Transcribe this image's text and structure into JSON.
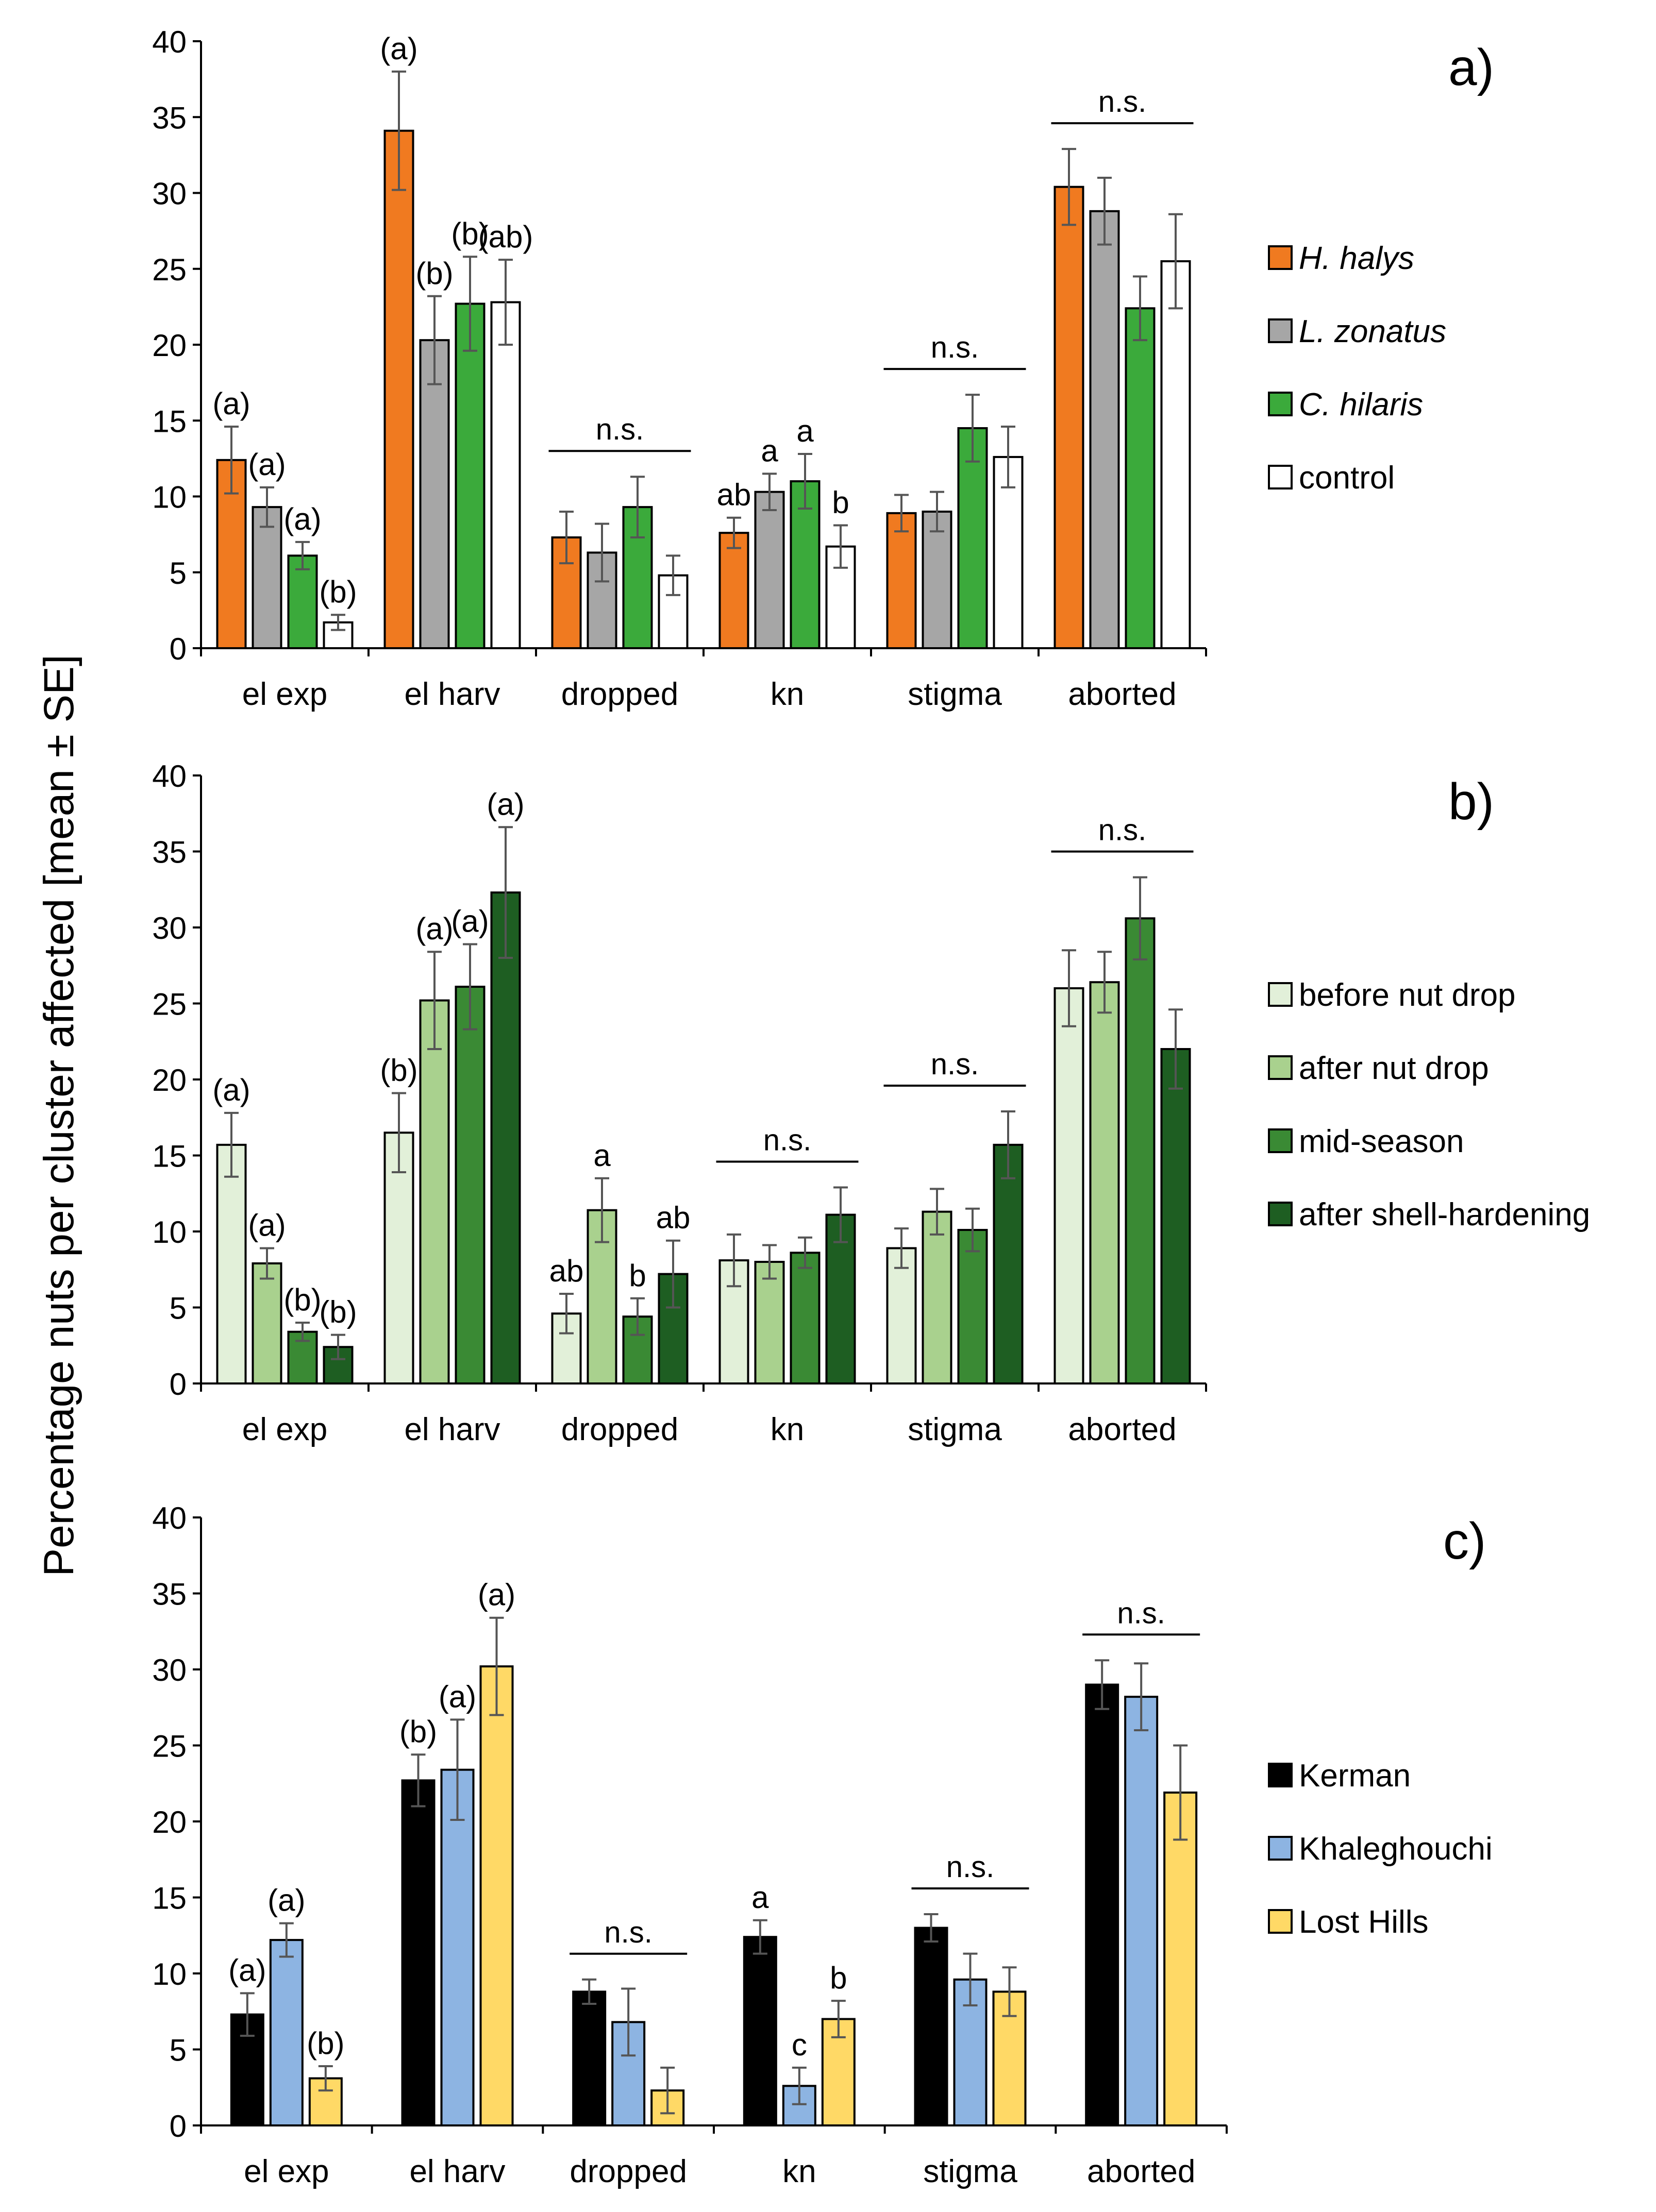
{
  "ylabel": "Percentage nuts per cluster affected [mean ± SE]",
  "chart_data": [
    {
      "type": "bar",
      "panel_label": "a)",
      "categories": [
        "el exp",
        "el harv",
        "dropped",
        "kn",
        "stigma",
        "aborted"
      ],
      "ylim": [
        0,
        40
      ],
      "yticks": [
        "0",
        "5",
        "10",
        "15",
        "20",
        "25",
        "30",
        "35",
        "40"
      ],
      "series": [
        {
          "name": "H. halys",
          "italic": true,
          "color": "#F07A20",
          "values": [
            12.4,
            34.1,
            7.3,
            7.6,
            8.9,
            30.4
          ],
          "se": [
            2.2,
            3.9,
            1.7,
            1.0,
            1.2,
            2.5
          ]
        },
        {
          "name": "L. zonatus",
          "italic": true,
          "color": "#A6A6A6",
          "values": [
            9.3,
            20.3,
            6.3,
            10.3,
            9.0,
            28.8
          ],
          "se": [
            1.3,
            2.9,
            1.9,
            1.2,
            1.3,
            2.2
          ]
        },
        {
          "name": "C. hilaris",
          "italic": true,
          "color": "#3BAA3B",
          "values": [
            6.1,
            22.7,
            9.3,
            11.0,
            14.5,
            22.4
          ],
          "se": [
            0.9,
            3.1,
            2.0,
            1.8,
            2.2,
            2.1
          ]
        },
        {
          "name": "control",
          "italic": false,
          "color": "#FFFFFF",
          "values": [
            1.7,
            22.8,
            4.8,
            6.7,
            12.6,
            25.5
          ],
          "se": [
            0.5,
            2.8,
            1.3,
            1.4,
            2.0,
            3.1
          ]
        }
      ],
      "letters": [
        [
          "(a)",
          "(a)",
          "(a)",
          "(b)"
        ],
        [
          "(a)",
          "(b)",
          "(b)",
          "(ab)"
        ],
        [
          "",
          "",
          "",
          ""
        ],
        [
          "ab",
          "a",
          "a",
          "b"
        ],
        [
          "",
          "",
          "",
          ""
        ],
        [
          "",
          "",
          "",
          ""
        ]
      ],
      "ns": [
        "",
        "",
        "n.s.",
        "",
        "n.s.",
        "n.s."
      ]
    },
    {
      "type": "bar",
      "panel_label": "b)",
      "categories": [
        "el exp",
        "el harv",
        "dropped",
        "kn",
        "stigma",
        "aborted"
      ],
      "ylim": [
        0,
        40
      ],
      "yticks": [
        "0",
        "5",
        "10",
        "15",
        "20",
        "25",
        "30",
        "35",
        "40"
      ],
      "series": [
        {
          "name": "before nut drop",
          "italic": false,
          "color": "#E2F0D9",
          "values": [
            15.7,
            16.5,
            4.6,
            8.1,
            8.9,
            26.0
          ],
          "se": [
            2.1,
            2.6,
            1.3,
            1.7,
            1.3,
            2.5
          ]
        },
        {
          "name": "after nut drop",
          "italic": false,
          "color": "#A9D18E",
          "values": [
            7.9,
            25.2,
            11.4,
            8.0,
            11.3,
            26.4
          ],
          "se": [
            1.0,
            3.2,
            2.1,
            1.1,
            1.5,
            2.0
          ]
        },
        {
          "name": "mid-season",
          "italic": false,
          "color": "#3A8A34",
          "values": [
            3.4,
            26.1,
            4.4,
            8.6,
            10.1,
            30.6
          ],
          "se": [
            0.6,
            2.8,
            1.2,
            1.0,
            1.4,
            2.7
          ]
        },
        {
          "name": "after shell-hardening",
          "italic": false,
          "color": "#1E5E22",
          "values": [
            2.4,
            32.3,
            7.2,
            11.1,
            15.7,
            22.0
          ],
          "se": [
            0.8,
            4.3,
            2.2,
            1.8,
            2.2,
            2.6
          ]
        }
      ],
      "letters": [
        [
          "(a)",
          "(a)",
          "(b)",
          "(b)"
        ],
        [
          "(b)",
          "(a)",
          "(a)",
          "(a)"
        ],
        [
          "ab",
          "a",
          "b",
          "ab"
        ],
        [
          "",
          "",
          "",
          ""
        ],
        [
          "",
          "",
          "",
          ""
        ],
        [
          "",
          "",
          "",
          ""
        ]
      ],
      "ns": [
        "",
        "",
        "",
        "n.s.",
        "n.s.",
        "n.s."
      ]
    },
    {
      "type": "bar",
      "panel_label": "c)",
      "categories": [
        "el exp",
        "el harv",
        "dropped",
        "kn",
        "stigma",
        "aborted"
      ],
      "ylim": [
        0,
        40
      ],
      "yticks": [
        "0",
        "5",
        "10",
        "15",
        "20",
        "25",
        "30",
        "35",
        "40"
      ],
      "series": [
        {
          "name": "Kerman",
          "italic": false,
          "color": "#000000",
          "values": [
            7.3,
            22.7,
            8.8,
            12.4,
            13.0,
            29.0
          ],
          "se": [
            1.4,
            1.7,
            0.8,
            1.1,
            0.9,
            1.6
          ]
        },
        {
          "name": "Khaleghouchi",
          "italic": false,
          "color": "#8DB4E2",
          "values": [
            12.2,
            23.4,
            6.8,
            2.6,
            9.6,
            28.2
          ],
          "se": [
            1.1,
            3.3,
            2.2,
            1.2,
            1.7,
            2.2
          ]
        },
        {
          "name": "Lost Hills",
          "italic": false,
          "color": "#FFD966",
          "values": [
            3.1,
            30.2,
            2.3,
            7.0,
            8.8,
            21.9
          ],
          "se": [
            0.8,
            3.2,
            1.5,
            1.2,
            1.6,
            3.1
          ]
        }
      ],
      "letters": [
        [
          "(a)",
          "(a)",
          "(b)"
        ],
        [
          "(b)",
          "(a)",
          "(a)"
        ],
        [
          "",
          "",
          ""
        ],
        [
          "a",
          "c",
          "b"
        ],
        [
          "",
          "",
          ""
        ],
        [
          "",
          "",
          ""
        ]
      ],
      "ns": [
        "",
        "",
        "n.s.",
        "",
        "n.s.",
        "n.s."
      ]
    }
  ]
}
